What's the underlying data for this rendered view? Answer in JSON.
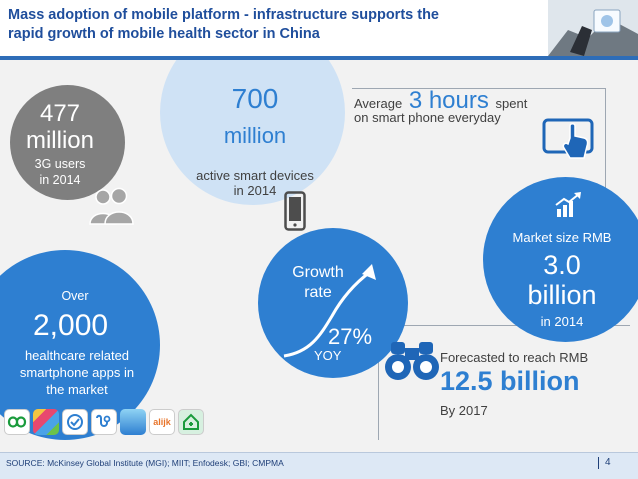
{
  "header": {
    "title_line1": "Mass adoption of mobile platform - infrastructure supports the",
    "title_line2": "rapid growth of mobile health sector in China"
  },
  "stat_3g": {
    "number": "477",
    "unit": "million",
    "label1": "3G users",
    "label2": "in 2014"
  },
  "stat_devices": {
    "number": "700",
    "unit": "million",
    "label1": "active smart devices",
    "label2": "in 2014"
  },
  "stat_hours": {
    "prefix": "Average",
    "value": "3 hours",
    "suffix": "spent",
    "line2": "on smart phone everyday"
  },
  "stat_apps": {
    "prefix": "Over",
    "number": "2,000",
    "label1": "healthcare related",
    "label2": "smartphone apps in",
    "label3": "the market"
  },
  "stat_growth": {
    "label1": "Growth",
    "label2": "rate",
    "value": "27%",
    "unit": "YOY"
  },
  "stat_market": {
    "label": "Market size RMB",
    "value": "3.0",
    "unit": "billion",
    "year": "in 2014"
  },
  "stat_forecast": {
    "label": "Forecasted to reach RMB",
    "value": "12.5 billion",
    "year": "By 2017"
  },
  "app_icon_texts": [
    "alijk"
  ],
  "footer": {
    "source": "SOURCE: McKinsey Global Institute (MGI); MIIT; Enfodesk; GBI; CMPMA",
    "page": "4"
  },
  "colors": {
    "title": "#1f4e9c",
    "primary_blue": "#2e7fd1",
    "light_blue": "#cfe2f5",
    "gray": "#7f7f7f",
    "icon_blue": "#1f66b7"
  },
  "icons": [
    "users-icon",
    "smartphone-icon",
    "tablet-touch-icon",
    "growth-chart-icon",
    "binoculars-icon",
    "app-icons"
  ]
}
